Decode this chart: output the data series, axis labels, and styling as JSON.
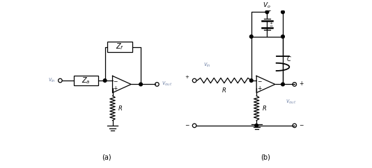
{
  "background_color": "#ffffff",
  "line_color": "#000000",
  "label_color": "#7788aa",
  "fig_width": 5.34,
  "fig_height": 2.42,
  "dpi": 100,
  "label_a": "(a)",
  "label_b": "(b)",
  "Za_label": "Z_a",
  "Zf_label": "Z_f",
  "C_label": "C",
  "Vo_label": "V_o",
  "R_label": "R",
  "vin_label": "v_{in}",
  "vout_label": "v_{out}"
}
